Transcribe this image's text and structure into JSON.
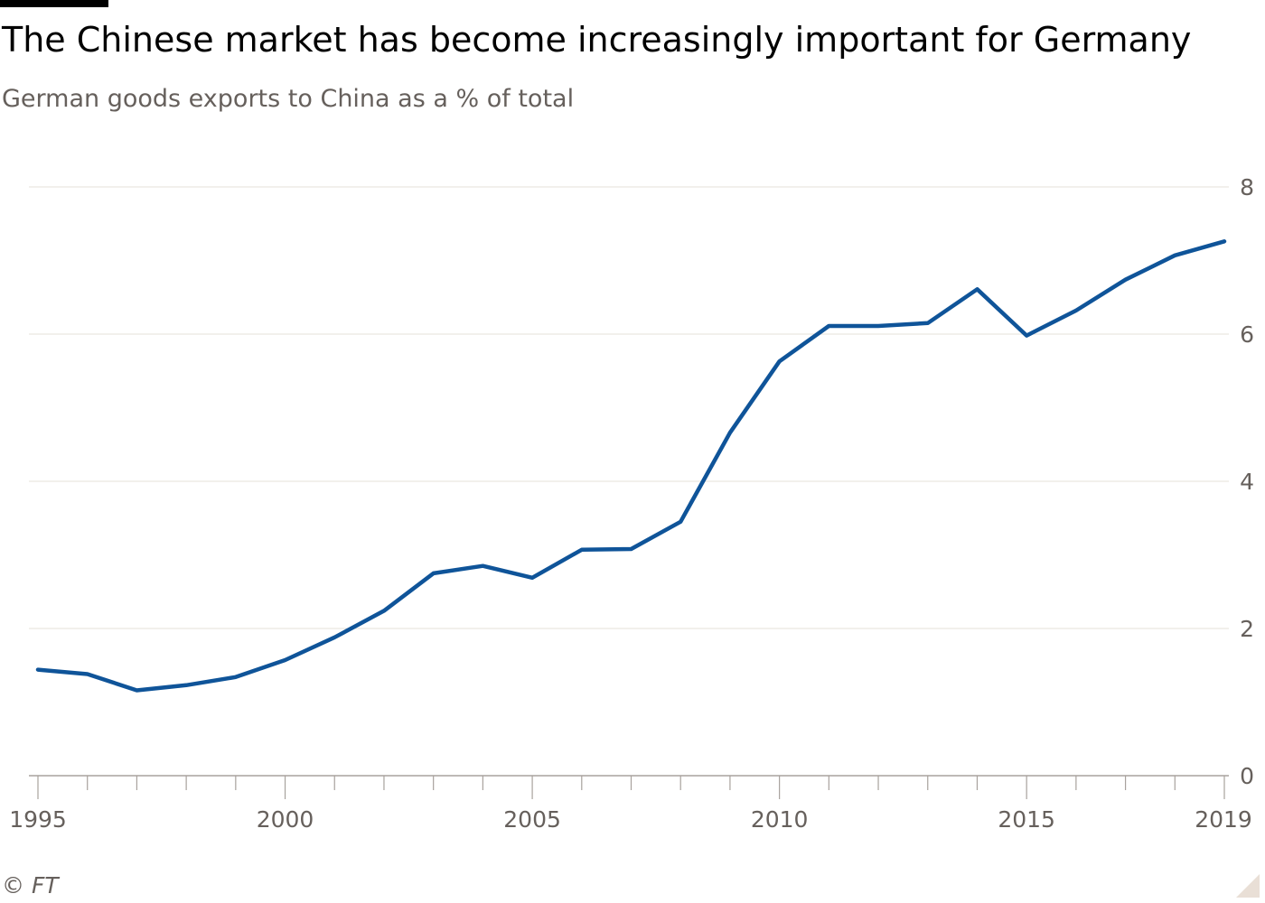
{
  "header": {
    "title": "The Chinese market has become increasingly important for Germany",
    "subtitle": "German goods exports to China as a % of total"
  },
  "footer": {
    "source": "© FT"
  },
  "colors": {
    "line": "#0f5499",
    "grid": "#e6e0da",
    "axis": "#a8a29d",
    "tick_text": "#66605c"
  },
  "chart_data": {
    "type": "line",
    "title": "The Chinese market has become increasingly important for Germany",
    "subtitle": "German goods exports to China as a % of total",
    "xlabel": "",
    "ylabel": "",
    "xlim": [
      1995,
      2019
    ],
    "ylim": [
      0,
      8
    ],
    "x_tick_labels": [
      "1995",
      "2000",
      "2005",
      "2010",
      "2015",
      "2019"
    ],
    "y_tick_labels": [
      "0",
      "2",
      "4",
      "6",
      "8"
    ],
    "y_axis_side": "right",
    "grid": "horizontal",
    "legend": "none",
    "x": [
      1995,
      1996,
      1997,
      1998,
      1999,
      2000,
      2001,
      2002,
      2003,
      2004,
      2005,
      2006,
      2007,
      2008,
      2009,
      2010,
      2011,
      2012,
      2013,
      2014,
      2015,
      2016,
      2017,
      2018,
      2019
    ],
    "series": [
      {
        "values": [
          1.44,
          1.38,
          1.16,
          1.23,
          1.34,
          1.57,
          1.88,
          2.24,
          2.75,
          2.85,
          2.69,
          3.07,
          3.08,
          3.45,
          4.66,
          5.63,
          6.11,
          6.11,
          6.15,
          6.61,
          5.98,
          6.32,
          6.74,
          7.07,
          7.26
        ]
      }
    ]
  }
}
